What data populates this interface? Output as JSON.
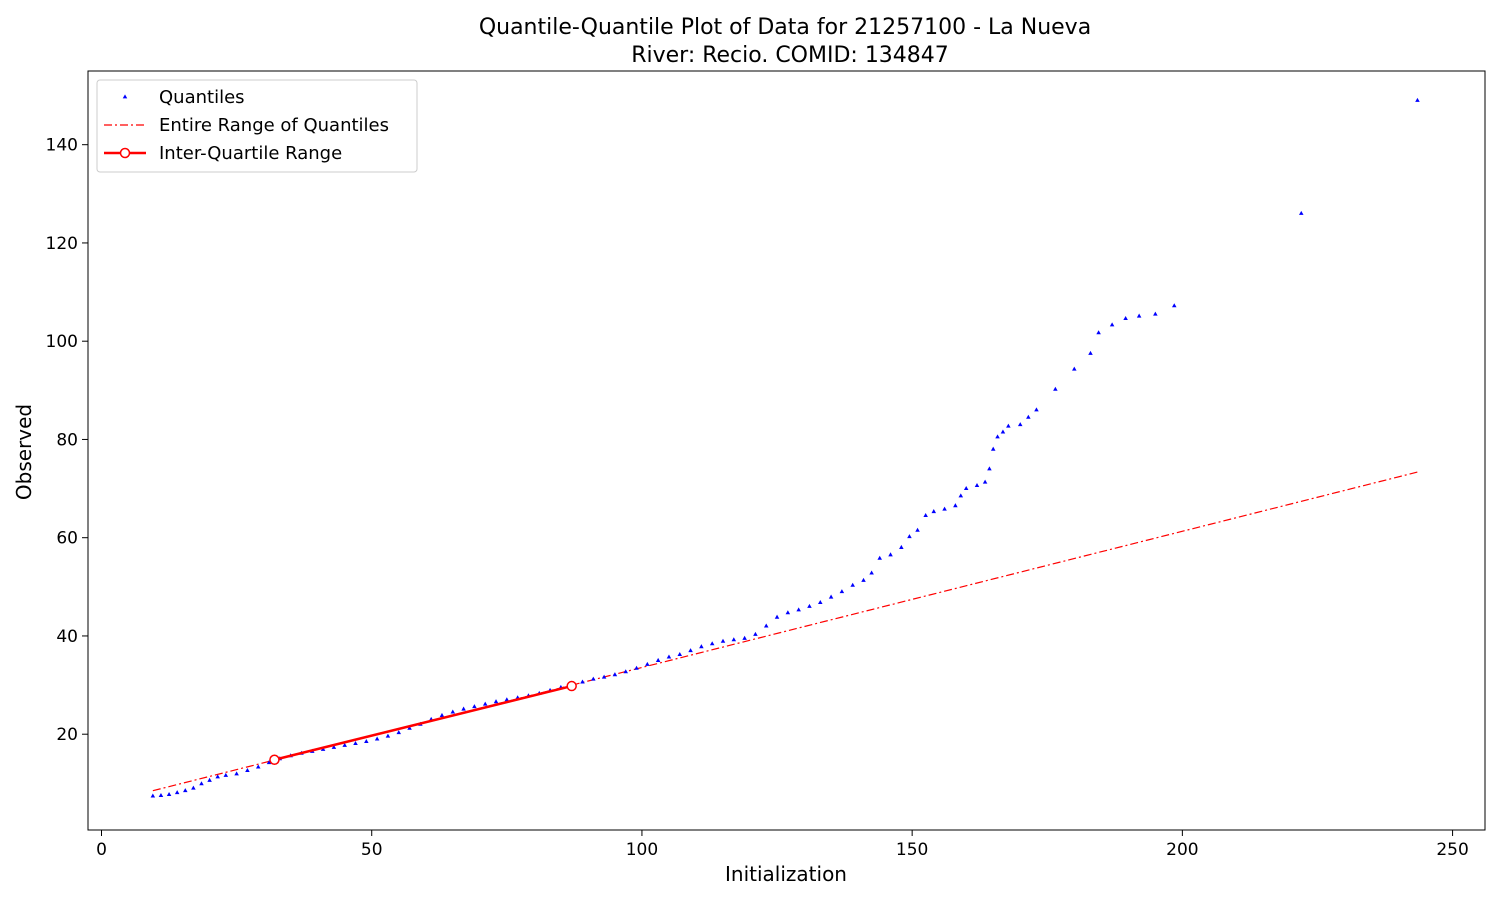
{
  "chart_data": {
    "type": "scatter",
    "title_line1": "Quantile-Quantile Plot of Data for 21257100 - La Nueva",
    "title_line2": "River: Recio. COMID: 134847",
    "xlabel": "Initialization",
    "ylabel": "Observed",
    "xlim": [
      -2.5,
      256
    ],
    "ylim": [
      0.5,
      155
    ],
    "x_ticks": [
      0,
      50,
      100,
      150,
      200,
      250
    ],
    "y_ticks": [
      20,
      40,
      60,
      80,
      100,
      120,
      140
    ],
    "grid": false,
    "legend_position": "top-left",
    "colors": {
      "quantiles": "#0000ff",
      "entire_range": "#ff0000",
      "iqr": "#ff0000"
    },
    "series": [
      {
        "name": "Quantiles",
        "marker": "triangle",
        "points": [
          [
            9.5,
            7.4
          ],
          [
            11,
            7.5
          ],
          [
            12.5,
            7.7
          ],
          [
            14,
            8.1
          ],
          [
            15.5,
            8.5
          ],
          [
            17,
            9.0
          ],
          [
            18.5,
            9.9
          ],
          [
            20,
            10.6
          ],
          [
            21.5,
            11.3
          ],
          [
            23,
            11.6
          ],
          [
            25,
            11.9
          ],
          [
            27,
            12.6
          ],
          [
            29,
            13.3
          ],
          [
            31,
            14.2
          ],
          [
            33,
            15.0
          ],
          [
            35,
            15.6
          ],
          [
            37,
            16.1
          ],
          [
            39,
            16.5
          ],
          [
            41,
            16.9
          ],
          [
            43,
            17.3
          ],
          [
            45,
            17.7
          ],
          [
            47,
            18.1
          ],
          [
            49,
            18.5
          ],
          [
            51,
            19.0
          ],
          [
            53,
            19.6
          ],
          [
            55,
            20.3
          ],
          [
            57,
            21.2
          ],
          [
            59,
            22.0
          ],
          [
            61,
            23.0
          ],
          [
            63,
            23.8
          ],
          [
            65,
            24.5
          ],
          [
            67,
            25.1
          ],
          [
            69,
            25.6
          ],
          [
            71,
            26.1
          ],
          [
            73,
            26.6
          ],
          [
            75,
            27.0
          ],
          [
            77,
            27.4
          ],
          [
            79,
            27.8
          ],
          [
            81,
            28.3
          ],
          [
            83,
            28.9
          ],
          [
            85,
            29.5
          ],
          [
            87,
            30.0
          ],
          [
            89,
            30.6
          ],
          [
            91,
            31.2
          ],
          [
            93,
            31.6
          ],
          [
            95,
            32.1
          ],
          [
            97,
            32.7
          ],
          [
            99,
            33.4
          ],
          [
            101,
            34.2
          ],
          [
            103,
            35.0
          ],
          [
            105,
            35.7
          ],
          [
            107,
            36.2
          ],
          [
            109,
            37.0
          ],
          [
            111,
            37.8
          ],
          [
            113,
            38.4
          ],
          [
            115,
            38.9
          ],
          [
            117,
            39.2
          ],
          [
            119,
            39.5
          ],
          [
            121,
            40.3
          ],
          [
            123,
            42.0
          ],
          [
            125,
            43.8
          ],
          [
            127,
            44.7
          ],
          [
            129,
            45.3
          ],
          [
            131,
            46.0
          ],
          [
            133,
            46.8
          ],
          [
            135,
            47.9
          ],
          [
            137,
            49.0
          ],
          [
            139,
            50.3
          ],
          [
            141,
            51.3
          ],
          [
            142.5,
            52.8
          ],
          [
            144,
            55.8
          ],
          [
            146,
            56.5
          ],
          [
            148,
            58.0
          ],
          [
            149.5,
            60.2
          ],
          [
            151,
            61.5
          ],
          [
            152.5,
            64.5
          ],
          [
            154,
            65.3
          ],
          [
            156,
            65.8
          ],
          [
            158,
            66.5
          ],
          [
            159,
            68.5
          ],
          [
            160,
            70.0
          ],
          [
            162,
            70.6
          ],
          [
            163.5,
            71.3
          ],
          [
            164.3,
            74.0
          ],
          [
            165,
            78.0
          ],
          [
            165.8,
            80.5
          ],
          [
            166.8,
            81.5
          ],
          [
            167.8,
            82.7
          ],
          [
            170,
            83.0
          ],
          [
            171.5,
            84.5
          ],
          [
            173,
            86.0
          ],
          [
            176.5,
            90.2
          ],
          [
            180,
            94.3
          ],
          [
            183,
            97.5
          ],
          [
            184.5,
            101.7
          ],
          [
            187,
            103.3
          ],
          [
            189.5,
            104.6
          ],
          [
            192,
            105.1
          ],
          [
            195,
            105.5
          ],
          [
            198.5,
            107.2
          ],
          [
            222,
            126.0
          ],
          [
            243.5,
            149.0
          ]
        ]
      },
      {
        "name": "Entire Range of Quantiles",
        "style": "dash-dot",
        "points": [
          [
            9.5,
            8.5
          ],
          [
            244,
            73.5
          ]
        ]
      },
      {
        "name": "Inter-Quartile Range",
        "style": "solid",
        "marker": "circle-open",
        "points": [
          [
            32,
            14.8
          ],
          [
            87,
            29.8
          ]
        ]
      }
    ]
  }
}
